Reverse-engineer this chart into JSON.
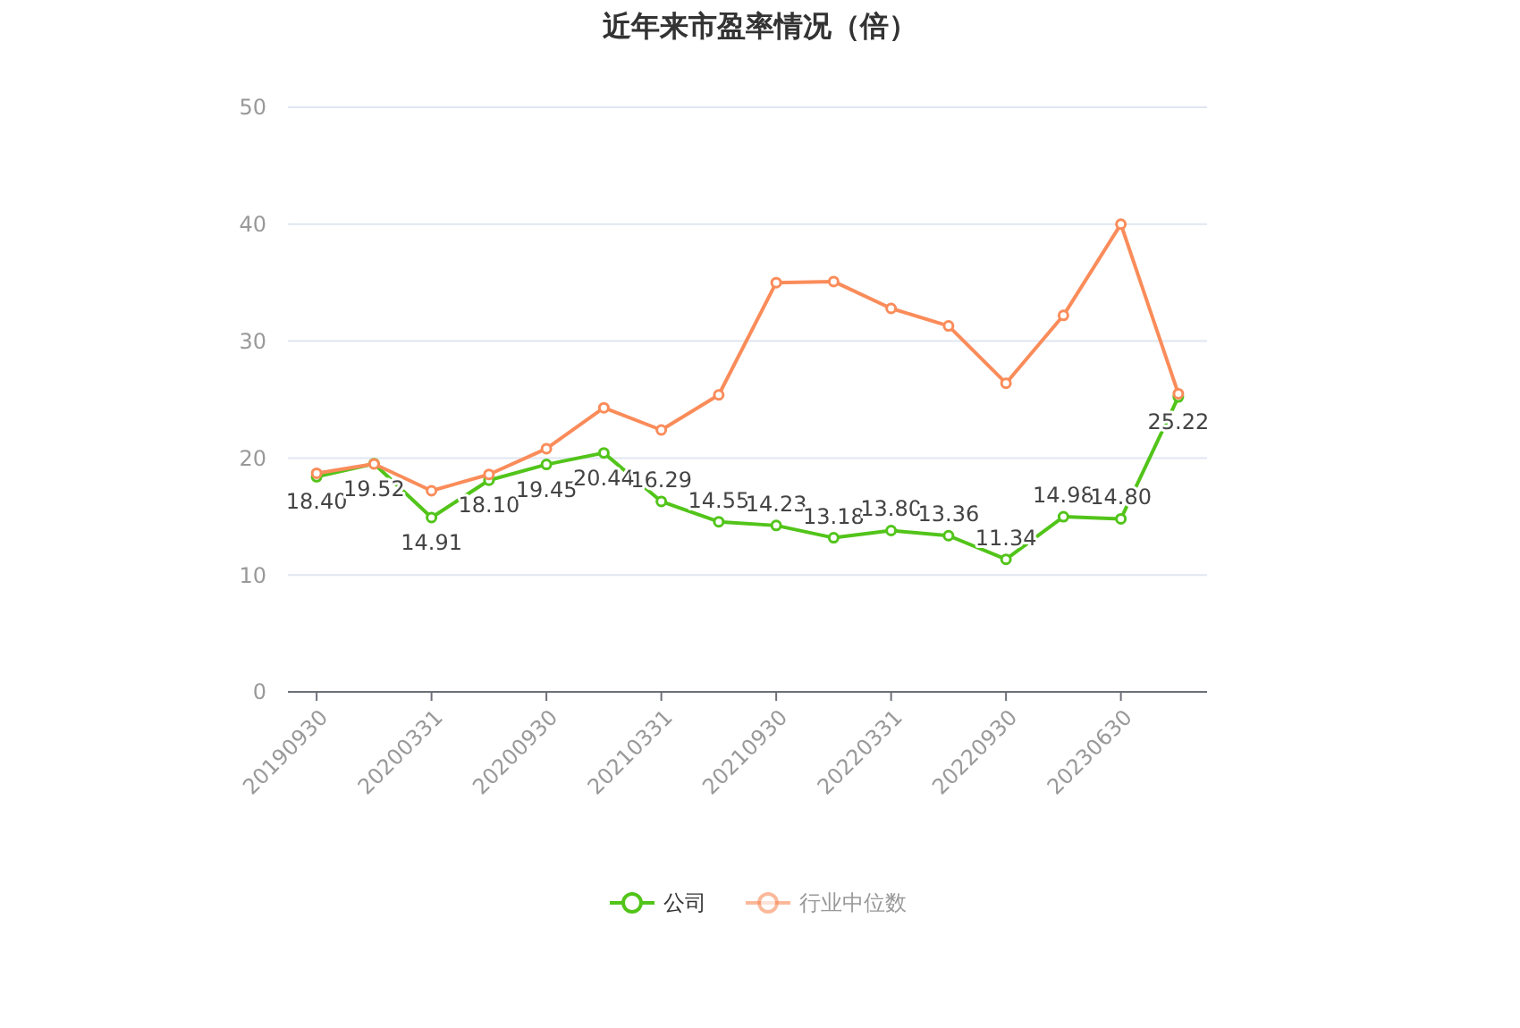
{
  "chart_data": {
    "type": "line",
    "title": "近年来市盈率情况（倍）",
    "categories": [
      "20190930",
      null,
      "20200331",
      null,
      "20200930",
      null,
      "20210331",
      null,
      "20210930",
      null,
      "20220331",
      null,
      "20220930",
      null,
      "20230630",
      null
    ],
    "series": [
      {
        "name": "公司",
        "color": "#52c41a",
        "values": [
          18.4,
          19.52,
          14.91,
          18.1,
          19.45,
          20.44,
          16.29,
          14.55,
          14.23,
          13.18,
          13.8,
          13.36,
          11.34,
          14.98,
          14.8,
          25.22
        ],
        "value_labels": [
          "18.40",
          "19.52",
          "14.91",
          "18.10",
          "19.45",
          "20.44",
          "16.29",
          "14.55",
          "14.23",
          "13.18",
          "13.80",
          "13.36",
          "11.34",
          "14.98",
          "14.80",
          "25.22"
        ]
      },
      {
        "name": "行业中位数",
        "color": "#fa8c5a",
        "values": [
          18.7,
          19.5,
          17.2,
          18.6,
          20.8,
          24.3,
          22.4,
          25.4,
          35.0,
          35.1,
          32.8,
          31.3,
          26.4,
          32.2,
          40.0,
          25.5
        ]
      }
    ],
    "ylim": [
      0,
      50
    ],
    "yticks": [
      0,
      10,
      20,
      30,
      40,
      50
    ],
    "grid": "y",
    "legend": "bottom",
    "marker": "circle",
    "line_style": "solid"
  }
}
